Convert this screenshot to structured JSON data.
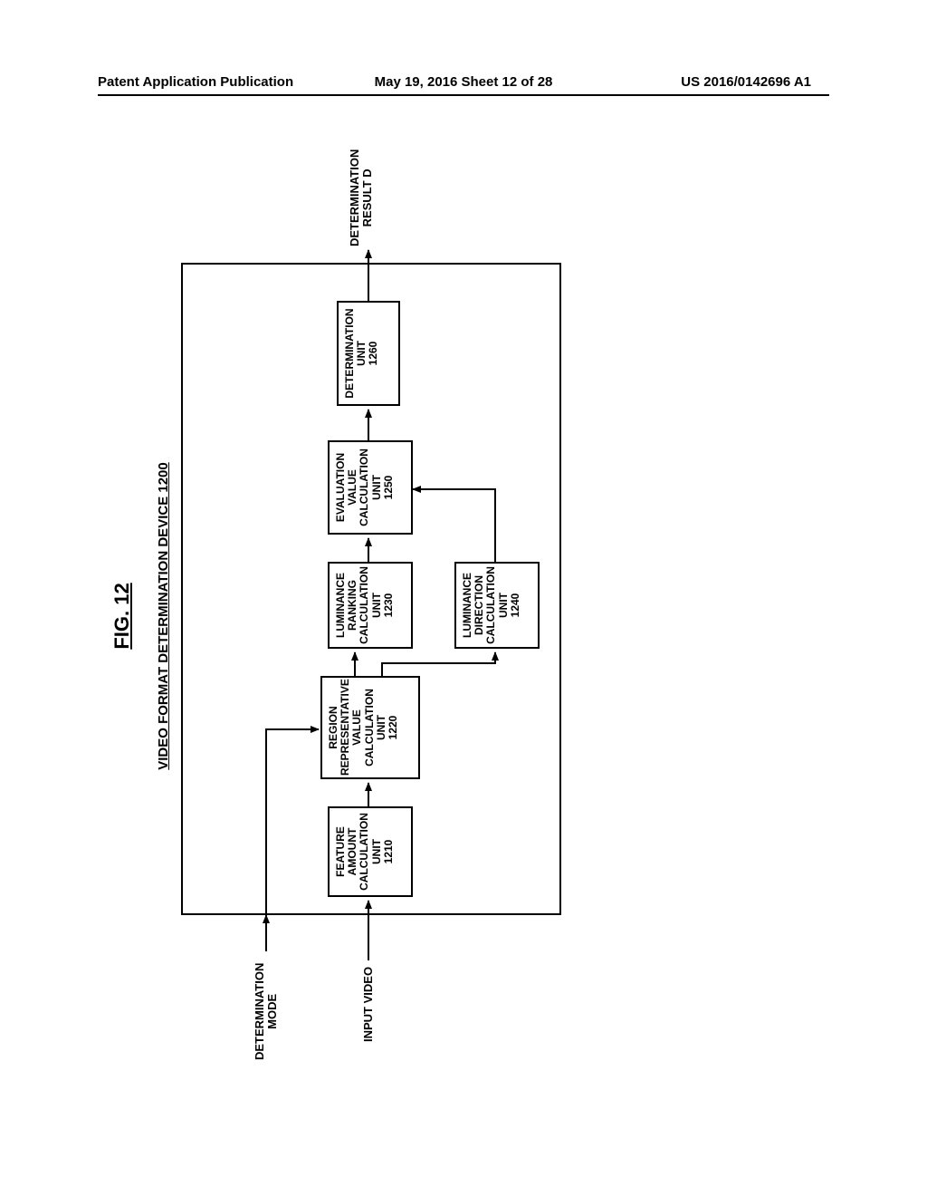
{
  "header": {
    "left": "Patent Application Publication",
    "center": "May 19, 2016  Sheet 12 of 28",
    "right": "US 2016/0142696 A1"
  },
  "figure": {
    "label": "FIG. 12",
    "device_title": "VIDEO FORMAT DETERMINATION DEVICE 1200",
    "inputs": {
      "mode": "DETERMINATION\nMODE",
      "video": "INPUT VIDEO"
    },
    "output": "DETERMINATION\nRESULT D",
    "units": {
      "u1210": "FEATURE\nAMOUNT\nCALCULATION\nUNIT\n1210",
      "u1220": "REGION\nREPRESENTATIVE\nVALUE\nCALCULATION\nUNIT\n1220",
      "u1230": "LUMINANCE\nRANKING\nCALCULATION\nUNIT\n1230",
      "u1240": "LUMINANCE\nDIRECTION\nCALCULATION\nUNIT\n1240",
      "u1250": "EVALUATION\nVALUE\nCALCULATION\nUNIT\n1250",
      "u1260": "DETERMINATION\nUNIT\n1260"
    },
    "style": {
      "border_color": "#000000",
      "border_width": 2,
      "background": "#ffffff",
      "font_family": "Arial",
      "label_fontsize": 12,
      "title_fontsize": 15,
      "fig_fontsize": 22,
      "arrow_color": "#000000",
      "arrow_width": 2
    }
  }
}
